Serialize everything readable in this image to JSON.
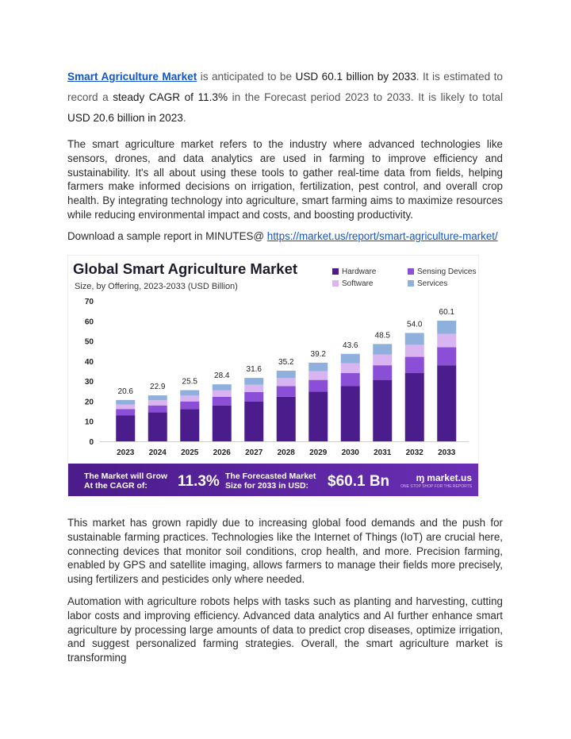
{
  "intro": {
    "link_text": "Smart Agriculture Market",
    "t1": " is anticipated to be ",
    "t2": "USD 60.1 billion by 2033",
    "t3": ". It is estimated to record a ",
    "t4": "steady CAGR of 11.3%",
    "t5": " in the Forecast period 2023 to 2033. It is likely to total ",
    "t6": "USD 20.6 billion in 2023",
    "t7": "."
  },
  "para2": "The smart agriculture market refers to the industry where advanced technologies like sensors, drones, and data analytics are used in farming to improve efficiency and sustainability. It's all about using these tools to gather real-time data from fields, helping farmers make informed decisions on irrigation, fertilization, pest control, and overall crop health. By integrating technology into agriculture, smart farming aims to maximize resources while reducing environmental impact and costs, and boosting productivity.",
  "download": {
    "text": "Download a sample report in MINUTES@ ",
    "url": "https://market.us/report/smart-agriculture-market/"
  },
  "infographic": {
    "title": "Global Smart Agriculture Market",
    "subtitle": "Size, by Offering, 2023-2033 (USD Billion)",
    "banner": {
      "cagr_label_1": "The Market will Grow",
      "cagr_label_2": "At the CAGR of:",
      "cagr_value": "11.3%",
      "forecast_label_1": "The Forecasted Market",
      "forecast_label_2": "Size for 2033 in USD:",
      "forecast_value": "$60.1 Bn",
      "logo": "market.us",
      "logo_tagline": "ONE STOP SHOP FOR THE REPORTS"
    }
  },
  "chart_data": {
    "type": "bar",
    "stacked": true,
    "categories": [
      "2023",
      "2024",
      "2025",
      "2026",
      "2027",
      "2028",
      "2029",
      "2030",
      "2031",
      "2032",
      "2033"
    ],
    "totals": [
      20.6,
      22.9,
      25.5,
      28.4,
      31.6,
      35.2,
      39.2,
      43.6,
      48.5,
      54.0,
      60.1
    ],
    "total_labels": [
      "20.6",
      "22.9",
      "25.5",
      "28.4",
      "31.6",
      "35.2",
      "39.2",
      "43.6",
      "48.5",
      "54.0",
      "60.1"
    ],
    "series": [
      {
        "name": "Hardware",
        "color": "#4a1c8c",
        "values": [
          13.0,
          14.5,
          16.1,
          17.9,
          19.9,
          22.2,
          24.7,
          27.5,
          30.6,
          34.0,
          37.9
        ]
      },
      {
        "name": "Sensing Devices",
        "color": "#8a4fd6",
        "values": [
          3.1,
          3.4,
          3.8,
          4.3,
          4.7,
          5.3,
          5.9,
          6.5,
          7.3,
          8.1,
          9.0
        ]
      },
      {
        "name": "Software",
        "color": "#d8b4f0",
        "values": [
          2.3,
          2.6,
          2.9,
          3.2,
          3.6,
          4.0,
          4.4,
          4.9,
          5.4,
          6.0,
          6.7
        ]
      },
      {
        "name": "Services",
        "color": "#8fb0dc",
        "values": [
          2.2,
          2.4,
          2.7,
          3.0,
          3.4,
          3.7,
          4.2,
          4.7,
          5.2,
          5.9,
          6.5
        ]
      }
    ],
    "yticks": [
      0,
      10,
      20,
      30,
      40,
      50,
      60,
      70
    ],
    "ylim": [
      0,
      70
    ],
    "legend_position": "top-right",
    "grid": false
  }
}
